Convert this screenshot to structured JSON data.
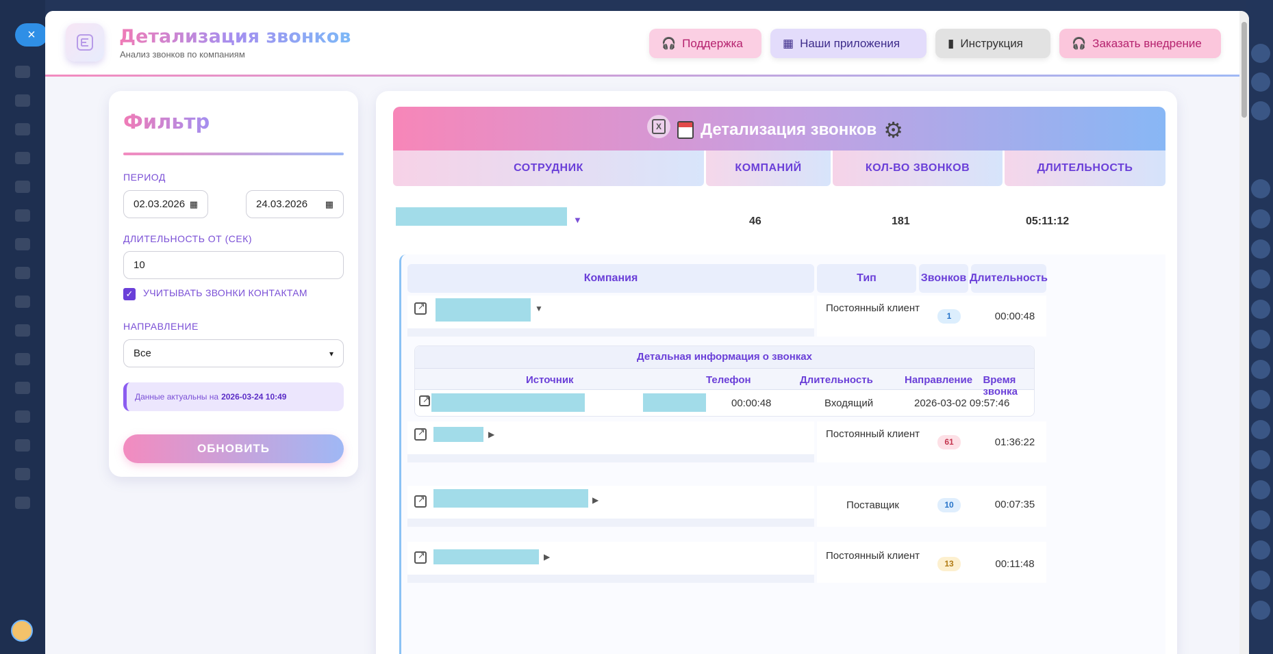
{
  "header": {
    "title": "Детализация звонков",
    "subtitle": "Анализ звонков по компаниям",
    "buttons": {
      "support": "Поддержка",
      "apps": "Наши приложения",
      "instruction": "Инструкция",
      "order": "Заказать внедрение"
    }
  },
  "filter": {
    "title": "Фильтр",
    "period_label": "ПЕРИОД",
    "date_from": "02.03.2026",
    "date_to": "24.03.2026",
    "duration_label": "ДЛИТЕЛЬНОСТЬ ОТ (СЕК)",
    "duration_value": "10",
    "checkbox_label": "УЧИТЫВАТЬ ЗВОНКИ КОНТАКТАМ",
    "checkbox_checked": true,
    "direction_label": "НАПРАВЛЕНИЕ",
    "direction_value": "Все",
    "info_text": "Данные актуальны на",
    "info_date": "2026-03-24 10:49",
    "refresh_label": "ОБНОВИТЬ"
  },
  "report": {
    "title": "Детализация звонков",
    "columns": [
      "СОТРУДНИК",
      "КОМПАНИЙ",
      "КОЛ-ВО ЗВОНКОВ",
      "ДЛИТЕЛЬНОСТЬ"
    ],
    "employee": {
      "companies": "46",
      "calls": "181",
      "duration": "05:11:12"
    },
    "company_columns": [
      "Компания",
      "Тип",
      "Звонков",
      "Длительность"
    ],
    "companies": [
      {
        "type": "Постоянный клиент",
        "calls": "1",
        "duration": "00:00:48",
        "badge_color": "#dceefd"
      },
      {
        "type": "Постоянный клиент",
        "calls": "61",
        "duration": "01:36:22",
        "badge_color": "#fde0e6"
      },
      {
        "type": "Поставщик",
        "calls": "10",
        "duration": "00:07:35",
        "badge_color": "#dfeefd"
      },
      {
        "type": "Постоянный клиент",
        "calls": "13",
        "duration": "00:11:48",
        "badge_color": "#fdf0cf"
      }
    ],
    "detail": {
      "title": "Детальная информация о звонках",
      "columns": [
        "Источник",
        "Телефон",
        "Длительность",
        "Направление",
        "Время звонка"
      ],
      "row": {
        "duration": "00:00:48",
        "direction": "Входящий",
        "time": "2026-03-02 09:57:46"
      }
    }
  },
  "colors": {
    "accent_pink": "#f07bb6",
    "accent_purple": "#6a3fd8",
    "accent_blue": "#7cb8f7"
  }
}
